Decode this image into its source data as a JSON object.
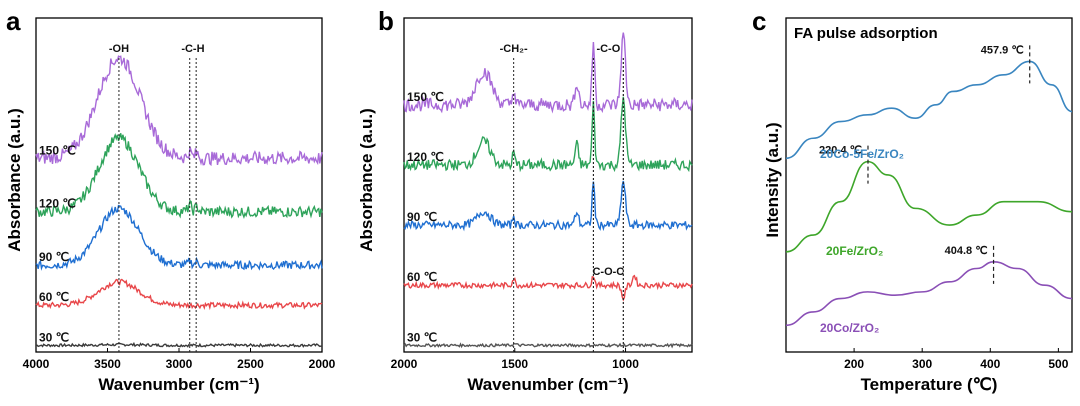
{
  "chart_data": [
    {
      "type": "line",
      "panel_letter": "a",
      "xlabel": "Wavenumber (cm⁻¹)",
      "ylabel": "Absorbance (a.u.)",
      "xlim": [
        4000,
        2000
      ],
      "xticks": [
        4000,
        3500,
        3000,
        2500,
        2000
      ],
      "ylim": [
        0,
        1
      ],
      "annotations": [
        {
          "text": "-OH",
          "x": 3420
        },
        {
          "text": "-C-H",
          "x": [
            2925,
            2880
          ]
        }
      ],
      "series": [
        {
          "name": "30 ℃",
          "color": "#3a3a3a",
          "offset": 0.0,
          "features": [
            {
              "x": 3400,
              "h": 0.002,
              "w": 150
            }
          ]
        },
        {
          "name": "60 ℃",
          "color": "#e8474a",
          "offset": 0.12,
          "features": [
            {
              "x": 3420,
              "h": 0.07,
              "w": 140
            }
          ]
        },
        {
          "name": "90 ℃",
          "color": "#1f6fd1",
          "offset": 0.24,
          "features": [
            {
              "x": 3420,
              "h": 0.17,
              "w": 140
            },
            {
              "x": 2925,
              "h": 0.012,
              "w": 12
            },
            {
              "x": 2875,
              "h": 0.01,
              "w": 12
            }
          ]
        },
        {
          "name": "120 ℃",
          "color": "#2ea35a",
          "offset": 0.4,
          "features": [
            {
              "x": 3420,
              "h": 0.22,
              "w": 140
            },
            {
              "x": 2925,
              "h": 0.02,
              "w": 12
            },
            {
              "x": 2875,
              "h": 0.015,
              "w": 12
            }
          ]
        },
        {
          "name": "150 ℃",
          "color": "#a86ad8",
          "offset": 0.56,
          "features": [
            {
              "x": 3420,
              "h": 0.3,
              "w": 150
            },
            {
              "x": 2925,
              "h": 0.02,
              "w": 12
            },
            {
              "x": 2875,
              "h": 0.015,
              "w": 12
            }
          ]
        }
      ]
    },
    {
      "type": "line",
      "panel_letter": "b",
      "xlabel": "Wavenumber (cm⁻¹)",
      "ylabel": "Absorbance (a.u.)",
      "xlim": [
        2000,
        700
      ],
      "xticks": [
        2000,
        1500,
        1000
      ],
      "ylim": [
        0,
        1
      ],
      "annotations": [
        {
          "text": "-CH₂-",
          "x": 1505
        },
        {
          "text": "-C-O",
          "x": [
            1145,
            1010
          ]
        },
        {
          "text": "C-O-C",
          "x": [
            1145,
            1010
          ]
        }
      ],
      "series": [
        {
          "name": "30 ℃",
          "color": "#555555",
          "offset": 0.0,
          "features": [
            {
              "x": 1500,
              "h": 0.004,
              "w": 8
            }
          ]
        },
        {
          "name": "60 ℃",
          "color": "#e8474a",
          "offset": 0.18,
          "features": [
            {
              "x": 1505,
              "h": 0.02,
              "w": 6
            },
            {
              "x": 1145,
              "h": 0.03,
              "w": 6
            },
            {
              "x": 1010,
              "h": -0.04,
              "w": 8
            },
            {
              "x": 960,
              "h": 0.03,
              "w": 8
            }
          ]
        },
        {
          "name": "90 ℃",
          "color": "#1f6fd1",
          "offset": 0.36,
          "features": [
            {
              "x": 1640,
              "h": 0.04,
              "w": 30
            },
            {
              "x": 1505,
              "h": 0.03,
              "w": 5
            },
            {
              "x": 1145,
              "h": 0.13,
              "w": 6
            },
            {
              "x": 1010,
              "h": 0.13,
              "w": 10
            },
            {
              "x": 1220,
              "h": 0.04,
              "w": 8
            }
          ]
        },
        {
          "name": "120 ℃",
          "color": "#2ea35a",
          "offset": 0.54,
          "features": [
            {
              "x": 1640,
              "h": 0.07,
              "w": 30
            },
            {
              "x": 1505,
              "h": 0.04,
              "w": 5
            },
            {
              "x": 1145,
              "h": 0.18,
              "w": 6
            },
            {
              "x": 1010,
              "h": 0.2,
              "w": 10
            },
            {
              "x": 1220,
              "h": 0.06,
              "w": 8
            }
          ]
        },
        {
          "name": "150 ℃",
          "color": "#a86ad8",
          "offset": 0.72,
          "features": [
            {
              "x": 1640,
              "h": 0.1,
              "w": 35
            },
            {
              "x": 1505,
              "h": 0.05,
              "w": 5
            },
            {
              "x": 1145,
              "h": 0.19,
              "w": 6
            },
            {
              "x": 1010,
              "h": 0.21,
              "w": 10
            },
            {
              "x": 1220,
              "h": 0.07,
              "w": 8
            }
          ]
        }
      ]
    },
    {
      "type": "line",
      "panel_letter": "c",
      "title": "FA pulse adsorption",
      "xlabel": "Temperature (℃)",
      "ylabel": "Intensity (a.u.)",
      "xlim": [
        100,
        520
      ],
      "xticks": [
        200,
        300,
        400,
        500
      ],
      "ylim": [
        0,
        1
      ],
      "series": [
        {
          "name": "20Co/ZrO₂",
          "color": "#8a4fb6",
          "peak_label": "404.8 ℃",
          "peak_x": 404.8,
          "points": [
            [
              100,
              0.08
            ],
            [
              140,
              0.12
            ],
            [
              180,
              0.16
            ],
            [
              220,
              0.18
            ],
            [
              260,
              0.17
            ],
            [
              300,
              0.18
            ],
            [
              340,
              0.21
            ],
            [
              380,
              0.25
            ],
            [
              405,
              0.27
            ],
            [
              440,
              0.25
            ],
            [
              480,
              0.2
            ],
            [
              520,
              0.16
            ]
          ]
        },
        {
          "name": "20Fe/ZrO₂",
          "color": "#3ea62a",
          "peak_label": "220.4 ℃",
          "peak_x": 220.4,
          "points": [
            [
              100,
              0.3
            ],
            [
              140,
              0.35
            ],
            [
              180,
              0.45
            ],
            [
              220,
              0.57
            ],
            [
              250,
              0.53
            ],
            [
              290,
              0.43
            ],
            [
              340,
              0.38
            ],
            [
              380,
              0.41
            ],
            [
              420,
              0.45
            ],
            [
              470,
              0.45
            ],
            [
              520,
              0.42
            ]
          ]
        },
        {
          "name": "20Co-5Fe/ZrO₂",
          "color": "#3a86c0",
          "peak_label": "457.9 ℃",
          "peak_x": 457.9,
          "points": [
            [
              100,
              0.58
            ],
            [
              140,
              0.64
            ],
            [
              180,
              0.69
            ],
            [
              220,
              0.71
            ],
            [
              255,
              0.73
            ],
            [
              290,
              0.7
            ],
            [
              320,
              0.74
            ],
            [
              345,
              0.78
            ],
            [
              380,
              0.8
            ],
            [
              420,
              0.83
            ],
            [
              458,
              0.87
            ],
            [
              490,
              0.8
            ],
            [
              520,
              0.72
            ]
          ]
        }
      ]
    }
  ]
}
